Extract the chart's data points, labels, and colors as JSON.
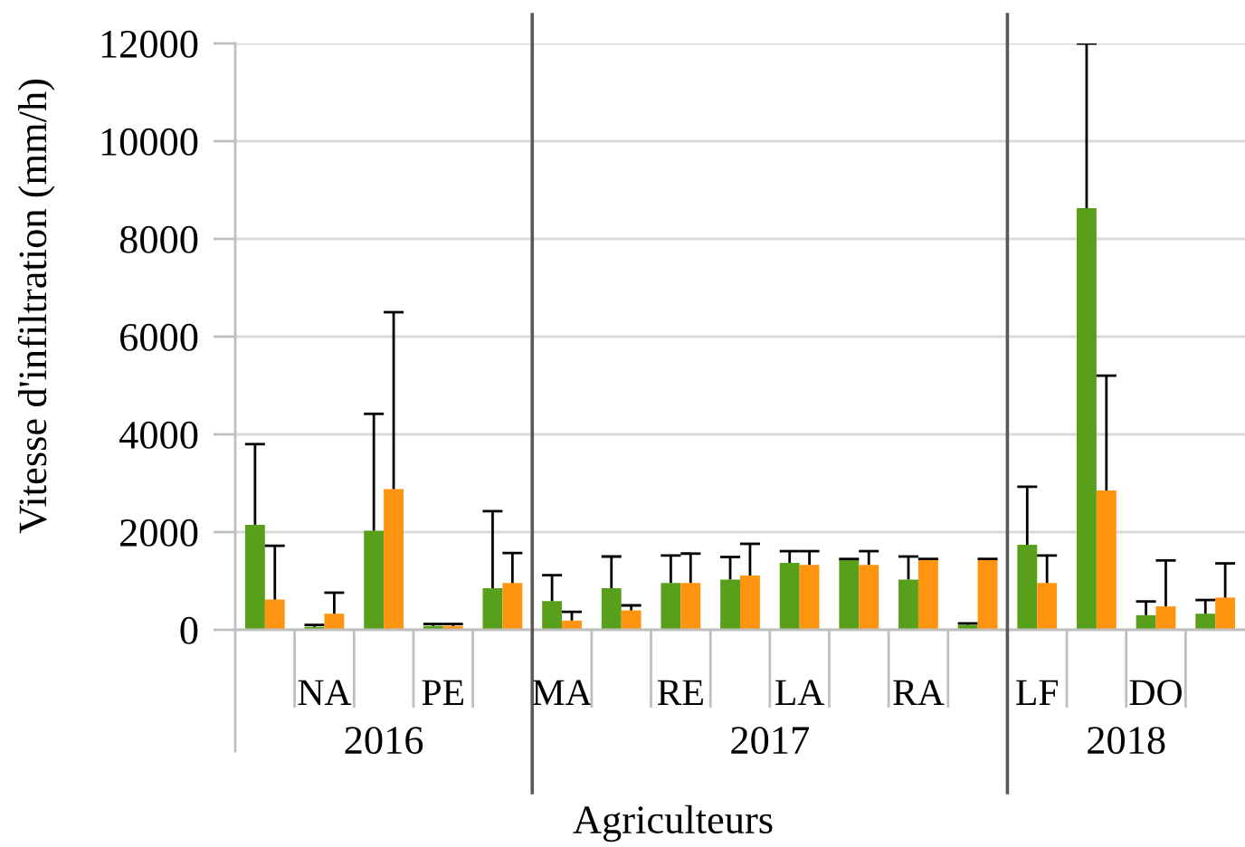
{
  "chart_data": [
    {
      "type": "bar",
      "ylabel": "Vitesse d'infiltration (mm/h)",
      "xlabel": "2016",
      "categories": [
        null,
        "NA",
        null,
        "PE",
        null
      ],
      "series": [
        {
          "color": "#58a01c",
          "values": [
            2150,
            60,
            2030,
            80,
            850
          ],
          "errors": [
            [
              2150,
              3800
            ],
            [
              60,
              100
            ],
            [
              2030,
              4420
            ],
            [
              80,
              120
            ],
            [
              850,
              2430
            ]
          ]
        },
        {
          "color": "#ff9410",
          "values": [
            620,
            330,
            2880,
            80,
            960
          ],
          "errors": [
            [
              620,
              1720
            ],
            [
              330,
              760
            ],
            [
              2880,
              6500
            ],
            [
              80,
              120
            ],
            [
              960,
              1570
            ]
          ]
        }
      ],
      "ylim": [
        0,
        12000
      ],
      "yticks": [
        0,
        2000,
        4000,
        6000,
        8000,
        10000,
        12000
      ],
      "grid": "y"
    },
    {
      "type": "bar",
      "xlabel": "2017",
      "categories": [
        "MA",
        null,
        "RE",
        null,
        "LA",
        null,
        "RA",
        null
      ],
      "series": [
        {
          "color": "#58a01c",
          "values": [
            590,
            850,
            960,
            1030,
            1370,
            1450,
            1030,
            100
          ],
          "errors": [
            [
              590,
              1120
            ],
            [
              850,
              1500
            ],
            [
              960,
              1520
            ],
            [
              1030,
              1490
            ],
            [
              1370,
              1610
            ],
            [
              1450,
              1450
            ],
            [
              1030,
              1500
            ],
            [
              100,
              130
            ]
          ]
        },
        {
          "color": "#ff9410",
          "values": [
            190,
            400,
            960,
            1110,
            1330,
            1330,
            1440,
            1440
          ],
          "errors": [
            [
              190,
              370
            ],
            [
              400,
              500
            ],
            [
              960,
              1560
            ],
            [
              1110,
              1760
            ],
            [
              1330,
              1610
            ],
            [
              1330,
              1610
            ],
            [
              1440,
              1450
            ],
            [
              1440,
              1450
            ]
          ]
        }
      ],
      "ylim": [
        0,
        12000
      ],
      "yticks": [
        0,
        2000,
        4000,
        6000,
        8000,
        10000,
        12000
      ],
      "grid": "y",
      "tick_labels": "x",
      "annotations": [
        "Agriculteurs"
      ]
    },
    {
      "type": "bar",
      "xlabel": "2018",
      "categories": [
        "LF",
        null,
        "DO",
        null
      ],
      "series": [
        {
          "color": "#58a01c",
          "values": [
            1740,
            8630,
            300,
            330
          ],
          "errors": [
            [
              1740,
              2930
            ],
            [
              8630,
              12000
            ],
            [
              300,
              580
            ],
            [
              330,
              610
            ]
          ]
        },
        {
          "color": "#ff9410",
          "values": [
            960,
            2850,
            480,
            660
          ],
          "errors": [
            [
              960,
              1520
            ],
            [
              2850,
              5200
            ],
            [
              480,
              1420
            ],
            [
              660,
              1360
            ]
          ]
        }
      ],
      "ylim": [
        0,
        12000
      ],
      "yticks": [
        0,
        2000,
        4000,
        6000,
        8000,
        10000,
        12000
      ],
      "grid": "y",
      "tick_labels": "x"
    }
  ]
}
